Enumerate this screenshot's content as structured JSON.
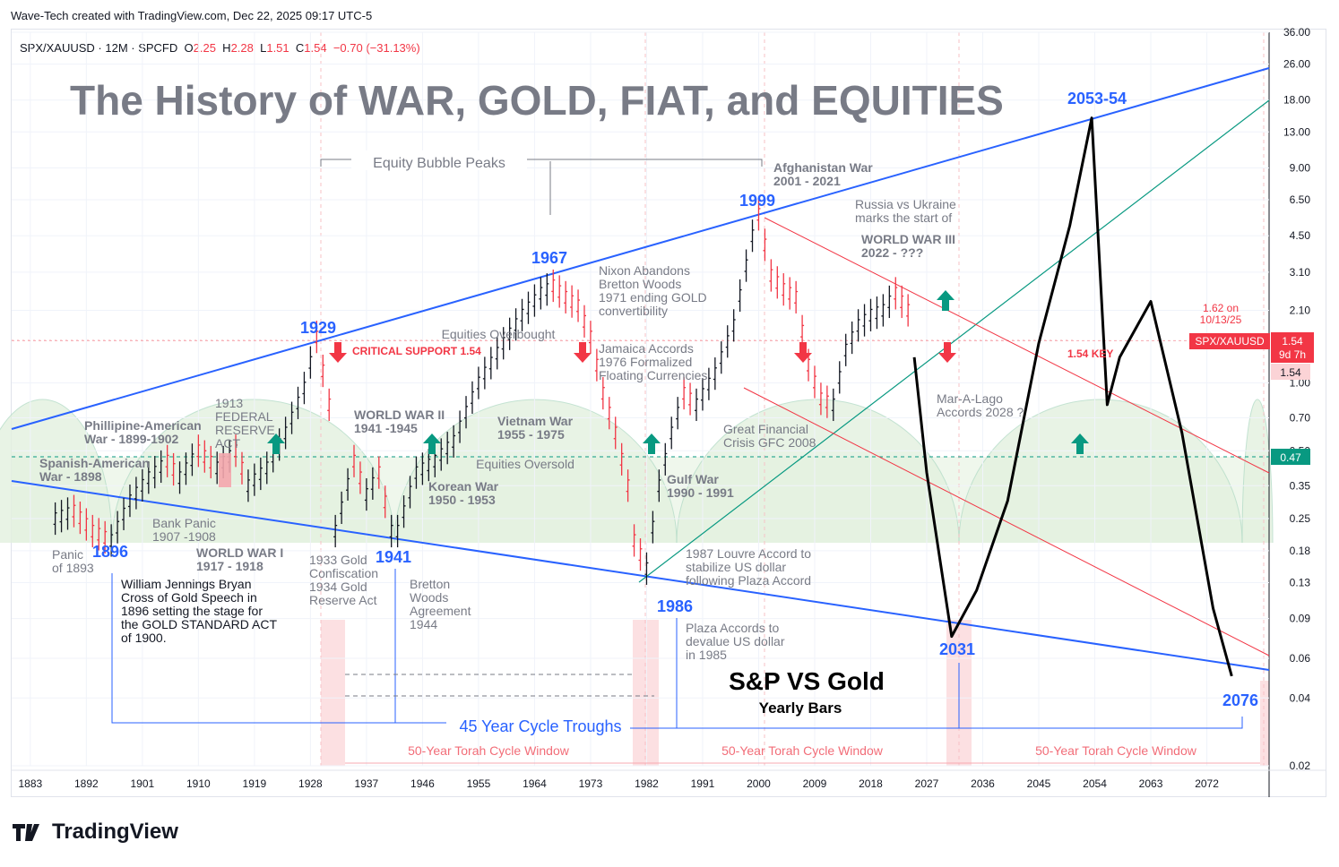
{
  "header": {
    "created": "Wave-Tech created with TradingView.com, Dec 22, 2025 09:17 UTC-5"
  },
  "legend": {
    "symbol": "SPX/XAUUSD · 12M · SPCFD",
    "o_label": "O",
    "o": "2.25",
    "h_label": "H",
    "h": "2.28",
    "l_label": "L",
    "l": "1.51",
    "c_label": "C",
    "c": "1.54",
    "change": "−0.70 (−31.13%)"
  },
  "chart_data": {
    "type": "line",
    "title": "The History of WAR, GOLD, FIAT, and EQUITIES",
    "subtitle": "S&P VS Gold",
    "subtitle2": "Yearly Bars",
    "scale": "log",
    "ylim": [
      0.02,
      36
    ],
    "xlim": [
      1880,
      2082
    ],
    "x_ticks": [
      "1883",
      "1892",
      "1901",
      "1910",
      "1919",
      "1928",
      "1937",
      "1946",
      "1955",
      "1964",
      "1973",
      "1982",
      "1991",
      "2000",
      "2009",
      "2018",
      "2027",
      "2036",
      "2045",
      "2054",
      "2063",
      "2072"
    ],
    "y_ticks": [
      "36.00",
      "26.00",
      "18.00",
      "13.00",
      "9.00",
      "6.50",
      "4.50",
      "3.10",
      "2.10",
      "1.00",
      "0.70",
      "0.50",
      "0.35",
      "0.25",
      "0.18",
      "0.13",
      "0.09",
      "0.06",
      "0.04",
      "0.02"
    ],
    "price_labels": {
      "symbol": "SPX/XAUUSD",
      "last": "1.54",
      "countdown": "9d 7h",
      "key": "1.54",
      "green": "0.47"
    },
    "series": [
      {
        "name": "SPX/XAUUSD yearly",
        "x": [
          1887,
          1890,
          1893,
          1896,
          1899,
          1902,
          1905,
          1907,
          1910,
          1913,
          1916,
          1918,
          1921,
          1924,
          1927,
          1929,
          1931,
          1932,
          1935,
          1937,
          1939,
          1941,
          1942,
          1945,
          1948,
          1951,
          1955,
          1959,
          1962,
          1965,
          1967,
          1969,
          1971,
          1973,
          1975,
          1977,
          1979,
          1980,
          1982,
          1984,
          1986,
          1988,
          1990,
          1993,
          1996,
          1999,
          2000,
          2002,
          2004,
          2006,
          2008,
          2010,
          2012,
          2014,
          2016,
          2018,
          2020,
          2022,
          2024,
          2025
        ],
        "values": [
          0.25,
          0.27,
          0.22,
          0.2,
          0.3,
          0.38,
          0.45,
          0.38,
          0.5,
          0.42,
          0.5,
          0.35,
          0.42,
          0.6,
          0.95,
          1.6,
          0.8,
          0.22,
          0.45,
          0.32,
          0.4,
          0.22,
          0.22,
          0.4,
          0.45,
          0.55,
          1.0,
          1.5,
          2.0,
          2.5,
          2.7,
          2.4,
          2.2,
          1.6,
          0.9,
          0.6,
          0.35,
          0.2,
          0.15,
          0.35,
          0.6,
          0.9,
          0.8,
          1.1,
          1.8,
          4.5,
          5.6,
          3.0,
          2.6,
          2.4,
          1.2,
          0.85,
          0.8,
          1.4,
          1.8,
          2.0,
          2.1,
          2.5,
          2.1,
          1.54
        ]
      },
      {
        "name": "Projection",
        "x": [
          2025,
          2027,
          2031,
          2035,
          2040,
          2045,
          2050,
          2053.5,
          2056,
          2058,
          2063,
          2068,
          2073,
          2076
        ],
        "values": [
          1.3,
          0.4,
          0.075,
          0.12,
          0.3,
          1.5,
          5.0,
          15.0,
          0.8,
          1.3,
          2.3,
          0.6,
          0.1,
          0.05
        ]
      }
    ],
    "annotations": {
      "years": [
        "1896",
        "1929",
        "1941",
        "1967",
        "1986",
        "1999",
        "2031",
        "2053-54",
        "2076"
      ],
      "bubble": "Equity Bubble Peaks",
      "cycle_troughs": "45 Year Cycle Troughs",
      "torah": "50-Year Torah Cycle Window",
      "critical": "CRITICAL SUPPORT 1.54",
      "key154": "1.54 KEY",
      "peak_note": "1.62 on 10/13/25",
      "overbought": "Equities Overbought",
      "oversold": "Equities Oversold",
      "events": [
        "Panic of 1893",
        "Spanish-American War - 1898",
        "Phillipine-American War - 1899-1902",
        "Bank Panic 1907 -1908",
        "1913 FEDERAL RESERVE ACT",
        "WORLD WAR I 1917 - 1918",
        "William Jennings Bryan Cross of Gold Speech in 1896 setting the stage for the GOLD STANDARD ACT of 1900.",
        "1933 Gold Confiscation 1934 Gold Reserve Act",
        "WORLD WAR II 1941 -1945",
        "Korean War 1950 - 1953",
        "Bretton Woods Agreement 1944",
        "Vietnam War 1955 - 1975",
        "Nixon Abandons Bretton Woods 1971 ending GOLD convertibility",
        "Jamaica Accords 1976 Formalized Floating Currencies",
        "Gulf War 1990 - 1991",
        "1987 Louvre Accord to stabilize US dollar following Plaza Accord",
        "Plaza Accords to devalue US dollar in 1985",
        "Afghanistan War 2001 - 2021",
        "Great Financial Crisis GFC 2008",
        "Russia vs Ukraine marks the start of",
        "WORLD WAR III 2022 - ???",
        "Mar-A-Lago Accords 2028 ?"
      ]
    }
  },
  "colors": {
    "blue": "#2962ff",
    "red": "#f23645",
    "green": "#089981",
    "gray": "#787b86",
    "pink": "#fbd3d6"
  },
  "brand": {
    "name": "TradingView"
  }
}
